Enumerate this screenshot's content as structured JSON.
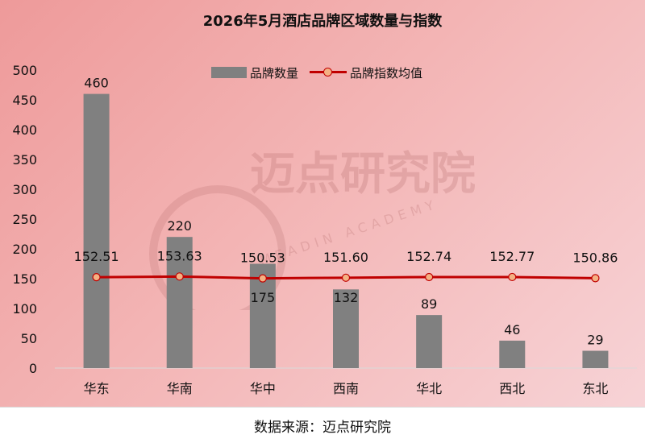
{
  "watermark": {
    "cn": "迈点研究院",
    "en": "MEADIN ACADEMY"
  },
  "source_note": "数据来源：迈点研究院",
  "colors": {
    "bar": "#808080",
    "line": "#c00000",
    "marker_fill": "#f4b183"
  },
  "chart_data": {
    "type": "bar+line",
    "title": "2026年5月酒店品牌区域数量与指数",
    "categories": [
      "华东",
      "华南",
      "华中",
      "西南",
      "华北",
      "西北",
      "东北"
    ],
    "ylim": [
      0,
      500
    ],
    "yticks": [
      "0",
      "50",
      "100",
      "150",
      "200",
      "250",
      "300",
      "350",
      "400",
      "450",
      "500"
    ],
    "grid": false,
    "legend_position": "top",
    "series": [
      {
        "name": "品牌数量",
        "type": "bar",
        "values": [
          460,
          220,
          175,
          132,
          89,
          46,
          29
        ],
        "labels": [
          "460",
          "220",
          "175",
          "132",
          "89",
          "46",
          "29"
        ]
      },
      {
        "name": "品牌指数均值",
        "type": "line",
        "values": [
          152.51,
          153.63,
          150.53,
          151.6,
          152.74,
          152.77,
          150.86
        ],
        "labels": [
          "152.51",
          "153.63",
          "150.53",
          "151.60",
          "152.74",
          "152.77",
          "150.86"
        ]
      }
    ]
  }
}
